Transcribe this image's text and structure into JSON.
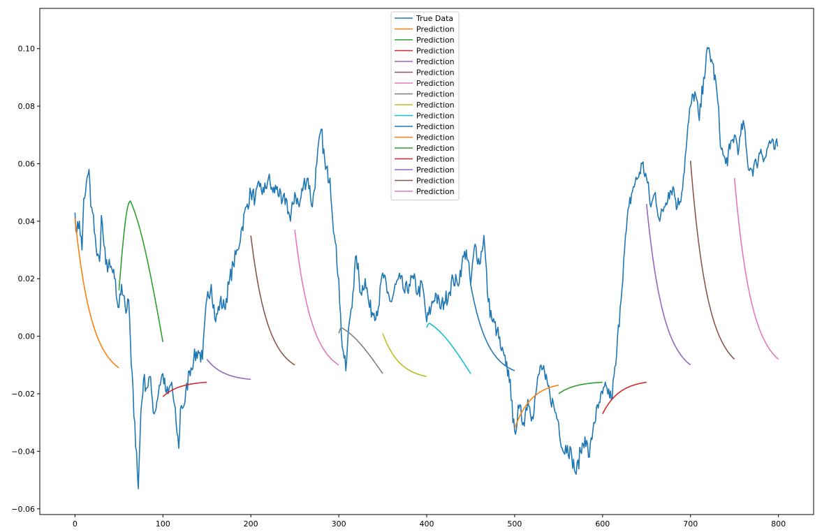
{
  "chart_data": {
    "type": "line",
    "title": "",
    "xlabel": "",
    "ylabel": "",
    "xlim": [
      -40,
      840
    ],
    "ylim": [
      -0.062,
      0.114
    ],
    "x_ticks": [
      0,
      100,
      200,
      300,
      400,
      500,
      600,
      700,
      800
    ],
    "y_ticks": [
      -0.06,
      -0.04,
      -0.02,
      0.0,
      0.02,
      0.04,
      0.06,
      0.08,
      0.1
    ],
    "x_tick_labels": [
      "0",
      "100",
      "200",
      "300",
      "400",
      "500",
      "600",
      "700",
      "800"
    ],
    "y_tick_labels": [
      "−0.06",
      "−0.04",
      "−0.02",
      "0.00",
      "0.02",
      "0.04",
      "0.06",
      "0.08",
      "0.10"
    ],
    "grid": false,
    "legend_position": "top-center",
    "true_data": {
      "name": "True Data",
      "color": "#1f77b4",
      "keypoints": [
        [
          0,
          0.043
        ],
        [
          2,
          0.036
        ],
        [
          5,
          0.04
        ],
        [
          8,
          0.03
        ],
        [
          10,
          0.048
        ],
        [
          12,
          0.05
        ],
        [
          16,
          0.058
        ],
        [
          18,
          0.045
        ],
        [
          20,
          0.043
        ],
        [
          23,
          0.035
        ],
        [
          25,
          0.028
        ],
        [
          28,
          0.026
        ],
        [
          30,
          0.042
        ],
        [
          32,
          0.035
        ],
        [
          35,
          0.025
        ],
        [
          40,
          0.024
        ],
        [
          45,
          0.02
        ],
        [
          48,
          0.012
        ],
        [
          50,
          0.01
        ],
        [
          53,
          0.018
        ],
        [
          56,
          0.014
        ],
        [
          58,
          0.008
        ],
        [
          60,
          0.013
        ],
        [
          62,
          0.007
        ],
        [
          64,
          -0.01
        ],
        [
          66,
          -0.018
        ],
        [
          67,
          -0.028
        ],
        [
          70,
          -0.04
        ],
        [
          72,
          -0.053
        ],
        [
          75,
          -0.026
        ],
        [
          78,
          -0.015
        ],
        [
          82,
          -0.018
        ],
        [
          85,
          -0.014
        ],
        [
          88,
          -0.022
        ],
        [
          90,
          -0.027
        ],
        [
          93,
          -0.023
        ],
        [
          96,
          -0.017
        ],
        [
          100,
          -0.013
        ],
        [
          103,
          -0.019
        ],
        [
          106,
          -0.02
        ],
        [
          110,
          -0.016
        ],
        [
          112,
          -0.022
        ],
        [
          115,
          -0.03
        ],
        [
          118,
          -0.039
        ],
        [
          120,
          -0.025
        ],
        [
          125,
          -0.023
        ],
        [
          130,
          -0.012
        ],
        [
          135,
          -0.008
        ],
        [
          140,
          -0.005
        ],
        [
          145,
          -0.008
        ],
        [
          150,
          0.013
        ],
        [
          155,
          0.018
        ],
        [
          160,
          0.005
        ],
        [
          165,
          0.012
        ],
        [
          170,
          0.01
        ],
        [
          175,
          0.018
        ],
        [
          180,
          0.025
        ],
        [
          185,
          0.03
        ],
        [
          190,
          0.038
        ],
        [
          195,
          0.045
        ],
        [
          200,
          0.05
        ],
        [
          205,
          0.048
        ],
        [
          210,
          0.052
        ],
        [
          215,
          0.05
        ],
        [
          220,
          0.055
        ],
        [
          225,
          0.05
        ],
        [
          230,
          0.052
        ],
        [
          235,
          0.046
        ],
        [
          240,
          0.048
        ],
        [
          245,
          0.04
        ],
        [
          250,
          0.05
        ],
        [
          255,
          0.045
        ],
        [
          260,
          0.053
        ],
        [
          265,
          0.055
        ],
        [
          270,
          0.045
        ],
        [
          275,
          0.06
        ],
        [
          280,
          0.072
        ],
        [
          285,
          0.058
        ],
        [
          290,
          0.055
        ],
        [
          295,
          0.035
        ],
        [
          300,
          0.02
        ],
        [
          303,
          0.0
        ],
        [
          305,
          -0.005
        ],
        [
          308,
          -0.012
        ],
        [
          312,
          0.005
        ],
        [
          316,
          0.015
        ],
        [
          320,
          0.028
        ],
        [
          325,
          0.015
        ],
        [
          330,
          0.02
        ],
        [
          335,
          0.01
        ],
        [
          340,
          0.008
        ],
        [
          345,
          0.01
        ],
        [
          350,
          0.022
        ],
        [
          355,
          0.015
        ],
        [
          360,
          0.012
        ],
        [
          365,
          0.018
        ],
        [
          370,
          0.02
        ],
        [
          375,
          0.015
        ],
        [
          380,
          0.018
        ],
        [
          385,
          0.02
        ],
        [
          390,
          0.015
        ],
        [
          395,
          0.018
        ],
        [
          400,
          0.005
        ],
        [
          405,
          0.01
        ],
        [
          410,
          0.015
        ],
        [
          415,
          0.01
        ],
        [
          420,
          0.012
        ],
        [
          425,
          0.015
        ],
        [
          430,
          0.02
        ],
        [
          435,
          0.018
        ],
        [
          440,
          0.025
        ],
        [
          445,
          0.03
        ],
        [
          450,
          0.018
        ],
        [
          455,
          0.032
        ],
        [
          460,
          0.025
        ],
        [
          465,
          0.035
        ],
        [
          470,
          0.012
        ],
        [
          475,
          0.005
        ],
        [
          480,
          0.002
        ],
        [
          485,
          -0.005
        ],
        [
          490,
          -0.01
        ],
        [
          495,
          -0.015
        ],
        [
          498,
          -0.03
        ],
        [
          500,
          -0.033
        ],
        [
          505,
          -0.025
        ],
        [
          510,
          -0.03
        ],
        [
          515,
          -0.022
        ],
        [
          520,
          -0.028
        ],
        [
          525,
          -0.018
        ],
        [
          530,
          -0.01
        ],
        [
          535,
          -0.015
        ],
        [
          540,
          -0.02
        ],
        [
          545,
          -0.025
        ],
        [
          550,
          -0.03
        ],
        [
          555,
          -0.04
        ],
        [
          560,
          -0.038
        ],
        [
          565,
          -0.042
        ],
        [
          570,
          -0.048
        ],
        [
          575,
          -0.04
        ],
        [
          580,
          -0.035
        ],
        [
          585,
          -0.042
        ],
        [
          590,
          -0.03
        ],
        [
          595,
          -0.025
        ],
        [
          600,
          -0.02
        ],
        [
          605,
          -0.018
        ],
        [
          610,
          -0.022
        ],
        [
          615,
          -0.01
        ],
        [
          620,
          0.01
        ],
        [
          625,
          0.03
        ],
        [
          630,
          0.045
        ],
        [
          635,
          0.052
        ],
        [
          640,
          0.055
        ],
        [
          645,
          0.06
        ],
        [
          650,
          0.055
        ],
        [
          655,
          0.045
        ],
        [
          660,
          0.05
        ],
        [
          665,
          0.04
        ],
        [
          670,
          0.045
        ],
        [
          675,
          0.05
        ],
        [
          680,
          0.052
        ],
        [
          685,
          0.045
        ],
        [
          690,
          0.05
        ],
        [
          695,
          0.065
        ],
        [
          698,
          0.075
        ],
        [
          700,
          0.08
        ],
        [
          705,
          0.085
        ],
        [
          710,
          0.075
        ],
        [
          715,
          0.09
        ],
        [
          720,
          0.1
        ],
        [
          725,
          0.095
        ],
        [
          730,
          0.085
        ],
        [
          735,
          0.065
        ],
        [
          740,
          0.06
        ],
        [
          745,
          0.065
        ],
        [
          750,
          0.07
        ],
        [
          755,
          0.065
        ],
        [
          760,
          0.075
        ],
        [
          765,
          0.06
        ],
        [
          770,
          0.058
        ],
        [
          775,
          0.06
        ],
        [
          780,
          0.065
        ],
        [
          785,
          0.062
        ],
        [
          790,
          0.068
        ],
        [
          795,
          0.065
        ],
        [
          799,
          0.066
        ]
      ]
    },
    "predictions": [
      {
        "name": "Prediction",
        "color": "#ff7f0e",
        "start": 0,
        "y0": 0.041,
        "y1": -0.011
      },
      {
        "name": "Prediction",
        "color": "#2ca02c",
        "start": 50,
        "y0": 0.016,
        "peak": 0.047,
        "peak_x": 63,
        "y1": -0.002
      },
      {
        "name": "Prediction",
        "color": "#d62728",
        "start": 100,
        "y0": -0.021,
        "y1": -0.016
      },
      {
        "name": "Prediction",
        "color": "#9467bd",
        "start": 150,
        "y0": -0.008,
        "y1": -0.015
      },
      {
        "name": "Prediction",
        "color": "#8c564b",
        "start": 200,
        "y0": 0.035,
        "y1": -0.01
      },
      {
        "name": "Prediction",
        "color": "#e377c2",
        "start": 250,
        "y0": 0.037,
        "y1": -0.01
      },
      {
        "name": "Prediction",
        "color": "#7f7f7f",
        "start": 300,
        "y0": 0.001,
        "peak": 0.003,
        "peak_x": 303,
        "y1": -0.013
      },
      {
        "name": "Prediction",
        "color": "#bcbd22",
        "start": 350,
        "y0": 0.001,
        "y1": -0.014
      },
      {
        "name": "Prediction",
        "color": "#17becf",
        "start": 400,
        "y0": 0.003,
        "peak": 0.0045,
        "peak_x": 403,
        "y1": -0.013
      },
      {
        "name": "Prediction",
        "color": "#1f77b4",
        "start": 450,
        "y0": 0.018,
        "y1": -0.012
      },
      {
        "name": "Prediction",
        "color": "#ff7f0e",
        "start": 500,
        "y0": -0.032,
        "y1": -0.017
      },
      {
        "name": "Prediction",
        "color": "#2ca02c",
        "start": 550,
        "y0": -0.02,
        "y1": -0.016
      },
      {
        "name": "Prediction",
        "color": "#d62728",
        "start": 600,
        "y0": -0.027,
        "y1": -0.016
      },
      {
        "name": "Prediction",
        "color": "#9467bd",
        "start": 650,
        "y0": 0.046,
        "y1": -0.01
      },
      {
        "name": "Prediction",
        "color": "#8c564b",
        "start": 700,
        "y0": 0.061,
        "y1": -0.008
      },
      {
        "name": "Prediction",
        "color": "#e377c2",
        "start": 750,
        "y0": 0.055,
        "y1": -0.008
      }
    ],
    "prediction_length": 50,
    "legend_entries": [
      "True Data",
      "Prediction",
      "Prediction",
      "Prediction",
      "Prediction",
      "Prediction",
      "Prediction",
      "Prediction",
      "Prediction",
      "Prediction",
      "Prediction",
      "Prediction",
      "Prediction",
      "Prediction",
      "Prediction",
      "Prediction",
      "Prediction"
    ]
  }
}
